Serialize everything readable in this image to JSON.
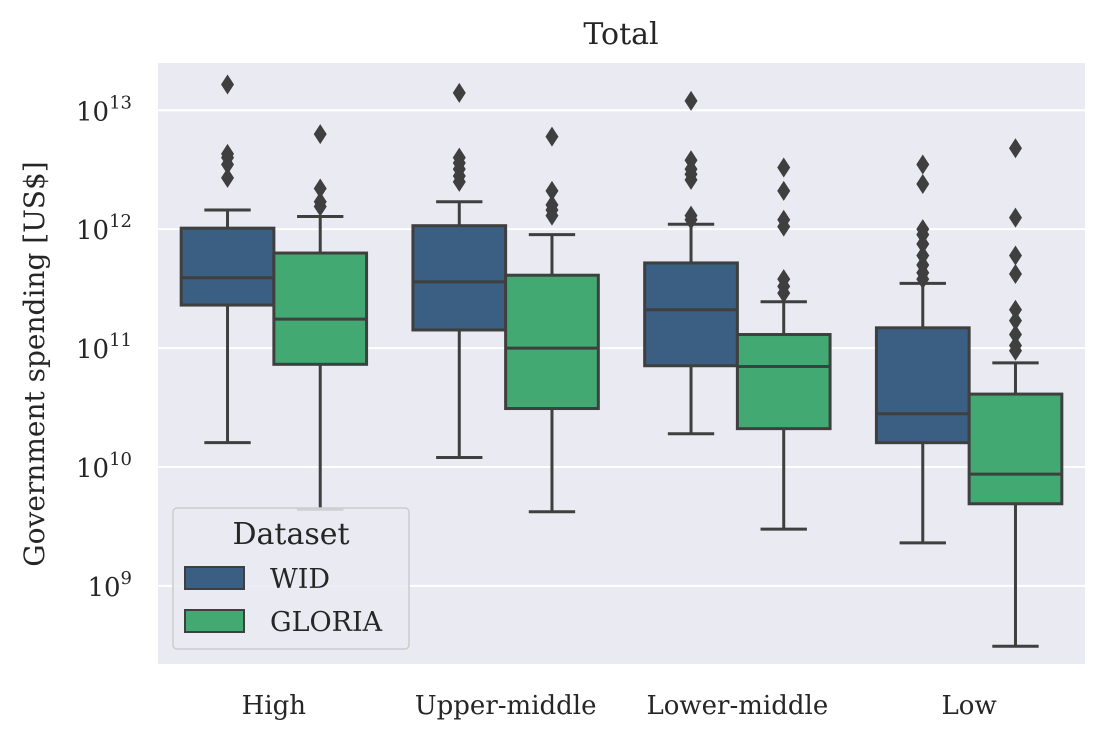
{
  "chart_data": {
    "type": "box",
    "title": "Total",
    "xlabel": "",
    "ylabel": "Government spending [US$]",
    "yscale": "log",
    "ylim": [
      220000000.0,
      25000000000000.0
    ],
    "yticks": [
      {
        "value": 1000000000.0,
        "base": "10",
        "exp": "9"
      },
      {
        "value": 10000000000.0,
        "base": "10",
        "exp": "10"
      },
      {
        "value": 100000000000.0,
        "base": "10",
        "exp": "11"
      },
      {
        "value": 1000000000000.0,
        "base": "10",
        "exp": "12"
      },
      {
        "value": 10000000000000.0,
        "base": "10",
        "exp": "13"
      }
    ],
    "grid": true,
    "categories": [
      "High",
      "Upper-middle",
      "Lower-middle",
      "Low"
    ],
    "legend": {
      "title": "Dataset",
      "placement": "lower-left"
    },
    "series": [
      {
        "name": "WID",
        "color": "#3a5f83",
        "boxes": [
          {
            "whislo": 16000000000.0,
            "q1": 230000000000.0,
            "med": 390000000000.0,
            "q3": 1020000000000.0,
            "whishi": 1450000000000.0,
            "fliers": [
              2700000000000.0,
              3500000000000.0,
              4000000000000.0,
              4300000000000.0,
              16500000000000.0
            ]
          },
          {
            "whislo": 12000000000.0,
            "q1": 142000000000.0,
            "med": 360000000000.0,
            "q3": 1070000000000.0,
            "whishi": 1700000000000.0,
            "fliers": [
              2500000000000.0,
              2800000000000.0,
              3200000000000.0,
              3600000000000.0,
              4000000000000.0,
              14000000000000.0
            ]
          },
          {
            "whislo": 19000000000.0,
            "q1": 71000000000.0,
            "med": 210000000000.0,
            "q3": 520000000000.0,
            "whishi": 1100000000000.0,
            "fliers": [
              1200000000000.0,
              1300000000000.0,
              2600000000000.0,
              2900000000000.0,
              3200000000000.0,
              3800000000000.0,
              12000000000000.0
            ]
          },
          {
            "whislo": 2300000000.0,
            "q1": 16000000000.0,
            "med": 28000000000.0,
            "q3": 148000000000.0,
            "whishi": 350000000000.0,
            "fliers": [
              380000000000.0,
              430000000000.0,
              500000000000.0,
              600000000000.0,
              750000000000.0,
              900000000000.0,
              1000000000000.0,
              2400000000000.0,
              3500000000000.0
            ]
          }
        ]
      },
      {
        "name": "GLORIA",
        "color": "#42a973",
        "boxes": [
          {
            "whislo": 4400000000.0,
            "q1": 73000000000.0,
            "med": 175000000000.0,
            "q3": 630000000000.0,
            "whishi": 1280000000000.0,
            "fliers": [
              1550000000000.0,
              1700000000000.0,
              2200000000000.0,
              6300000000000.0
            ]
          },
          {
            "whislo": 4200000000.0,
            "q1": 31000000000.0,
            "med": 100000000000.0,
            "q3": 410000000000.0,
            "whishi": 900000000000.0,
            "fliers": [
              1300000000000.0,
              1450000000000.0,
              1600000000000.0,
              2100000000000.0,
              6000000000000.0
            ]
          },
          {
            "whislo": 3000000000.0,
            "q1": 21000000000.0,
            "med": 70000000000.0,
            "q3": 130000000000.0,
            "whishi": 245000000000.0,
            "fliers": [
              290000000000.0,
              330000000000.0,
              380000000000.0,
              1050000000000.0,
              1200000000000.0,
              2100000000000.0,
              3300000000000.0
            ]
          },
          {
            "whislo": 310000000.0,
            "q1": 4900000000.0,
            "med": 8700000000.0,
            "q3": 41000000000.0,
            "whishi": 75000000000.0,
            "fliers": [
              95000000000.0,
              105000000000.0,
              130000000000.0,
              170000000000.0,
              210000000000.0,
              420000000000.0,
              600000000000.0,
              1250000000000.0,
              4800000000000.0
            ]
          }
        ]
      }
    ]
  }
}
